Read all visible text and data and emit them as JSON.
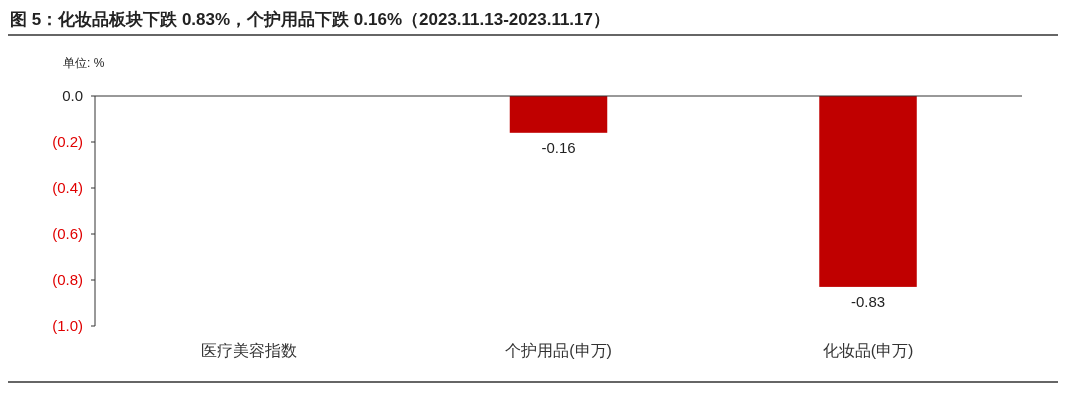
{
  "chart_data": {
    "type": "bar",
    "title": "图 5：化妆品板块下跌 0.83%，个护用品下跌 0.16%（2023.11.13-2023.11.17）",
    "ylabel": "单位: %",
    "categories": [
      "医疗美容指数",
      "个护用品(申万)",
      "化妆品(申万)"
    ],
    "values": [
      0,
      -0.16,
      -0.83
    ],
    "color": "#c00000",
    "value_labels": [
      null,
      "-0.16",
      "-0.83"
    ],
    "ylim": [
      -1,
      0
    ],
    "yticks": [
      {
        "value": 0,
        "label": "0.0"
      },
      {
        "value": -0.2,
        "label": "(0.2)"
      },
      {
        "value": -0.4,
        "label": "(0.4)"
      },
      {
        "value": -0.6,
        "label": "(0.6)"
      },
      {
        "value": -0.8,
        "label": "(0.8)"
      },
      {
        "value": -1,
        "label": "(1.0)"
      }
    ],
    "grid": false
  }
}
